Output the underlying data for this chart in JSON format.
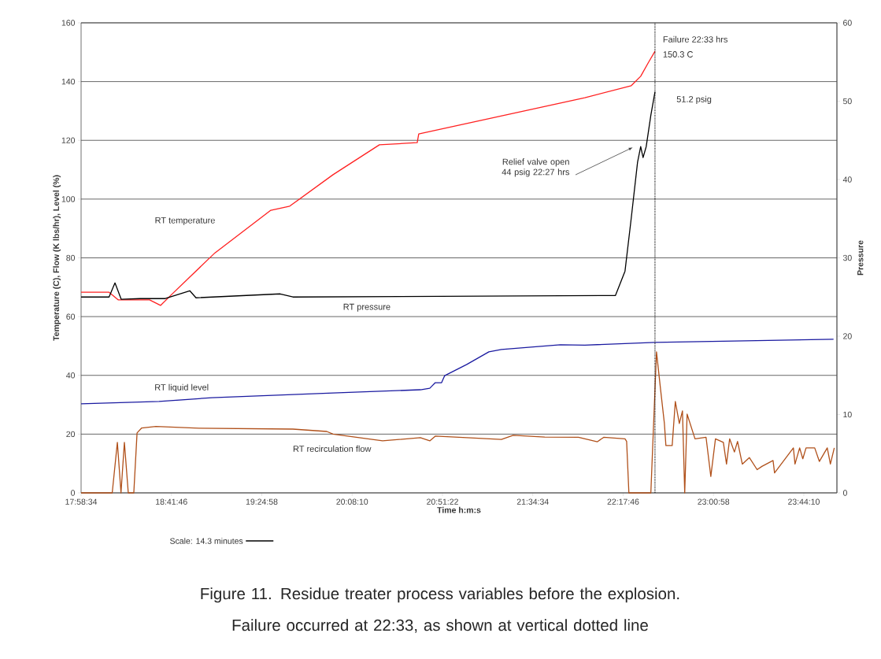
{
  "chart_data": {
    "type": "line",
    "xlabel": "Time  h:m:s",
    "ylabel": "Temperature (C), Flow (K lbs/hr),  Level (%)",
    "y2label": "Pressure",
    "xlim": [
      17.976,
      24.0
    ],
    "ylim": [
      0,
      160
    ],
    "y2lim": [
      0,
      60
    ],
    "xticks": [
      {
        "value": 17.97611,
        "label": "17:58:34"
      },
      {
        "value": 18.69611,
        "label": "18:41:46"
      },
      {
        "value": 19.41611,
        "label": "19:24:58"
      },
      {
        "value": 20.13611,
        "label": "20:08:10"
      },
      {
        "value": 20.85611,
        "label": "20:51:22"
      },
      {
        "value": 21.57611,
        "label": "21:34:34"
      },
      {
        "value": 22.29611,
        "label": "22:17:46"
      },
      {
        "value": 23.01611,
        "label": "23:00:58"
      },
      {
        "value": 23.73611,
        "label": "23:44:10"
      }
    ],
    "yticks": [
      0,
      20,
      40,
      60,
      80,
      100,
      120,
      140,
      160
    ],
    "y2ticks": [
      0,
      10,
      20,
      30,
      40,
      50,
      60
    ],
    "grid": "y",
    "marker": "none",
    "line_style": "solid",
    "series": [
      {
        "name": "RT temperature",
        "color": "#ff2020",
        "x": [
          17.976,
          18.199,
          18.271,
          18.522,
          18.609,
          18.697,
          19.043,
          19.488,
          19.639,
          19.984,
          20.354,
          20.655,
          20.667,
          21.991,
          22.361,
          22.436,
          22.499,
          22.55
        ],
        "values": [
          68.3,
          68.3,
          65.7,
          65.7,
          63.8,
          67.5,
          81.7,
          96.2,
          97.6,
          108.3,
          118.5,
          119.2,
          122.2,
          134.5,
          138.6,
          141.8,
          146.6,
          150.3
        ]
      },
      {
        "name": "RT pressure",
        "color": "#000000",
        "axis": "y2",
        "x": [
          17.976,
          18.199,
          18.246,
          18.296,
          18.447,
          18.647,
          18.842,
          18.892,
          19.563,
          19.664,
          22.235,
          22.311,
          22.361,
          22.411,
          22.436,
          22.455,
          22.48,
          22.517,
          22.55
        ],
        "values": [
          25.0,
          25.0,
          26.8,
          24.7,
          24.8,
          24.8,
          25.8,
          24.9,
          25.4,
          25.0,
          25.2,
          28.3,
          35.1,
          42.2,
          44.2,
          42.8,
          44.2,
          48.2,
          51.2
        ]
      },
      {
        "name": "RT liquid level",
        "color": "#1a1aa0",
        "x": [
          17.976,
          18.597,
          19.018,
          19.984,
          20.68,
          20.755,
          20.799,
          20.849,
          20.874,
          21.05,
          21.226,
          21.326,
          21.796,
          21.991,
          22.55,
          23.183,
          23.973
        ],
        "values": [
          30.3,
          31.1,
          32.4,
          34.0,
          35.1,
          35.6,
          37.5,
          37.5,
          39.9,
          43.7,
          48.0,
          48.8,
          50.4,
          50.3,
          51.2,
          51.7,
          52.3
        ]
      },
      {
        "name": "RT recirculation flow",
        "color": "#b0501a",
        "x": [
          17.976,
          18.224,
          18.265,
          18.294,
          18.321,
          18.352,
          18.396,
          18.422,
          18.459,
          18.572,
          18.917,
          19.664,
          19.934,
          19.984,
          20.379,
          20.68,
          20.755,
          20.799,
          21.05,
          21.326,
          21.42,
          21.671,
          21.94,
          22.091,
          22.141,
          22.311,
          22.324,
          22.342,
          22.517,
          22.562,
          22.594,
          22.625,
          22.637,
          22.687,
          22.712,
          22.744,
          22.769,
          22.787,
          22.806,
          22.869,
          22.957,
          22.995,
          23.032,
          23.095,
          23.12,
          23.145,
          23.183,
          23.208,
          23.246,
          23.302,
          23.364,
          23.402,
          23.491,
          23.503,
          23.653,
          23.666,
          23.703,
          23.728,
          23.754,
          23.823,
          23.86,
          23.923,
          23.948,
          23.979
        ],
        "values": [
          0,
          0,
          17.2,
          0,
          17.2,
          0,
          0,
          20.4,
          22.1,
          22.6,
          22.0,
          21.7,
          20.9,
          20.0,
          17.7,
          18.8,
          17.7,
          19.3,
          18.8,
          18.2,
          19.6,
          19.0,
          18.9,
          17.4,
          18.9,
          18.4,
          17.5,
          0,
          0,
          48.0,
          35.4,
          23.6,
          16.1,
          16.1,
          31.1,
          23.6,
          27.9,
          0,
          26.8,
          18.4,
          18.9,
          5.6,
          18.4,
          17.2,
          9.8,
          18.4,
          13.9,
          17.5,
          9.8,
          12.0,
          7.9,
          9.0,
          11.0,
          6.8,
          15.3,
          9.8,
          15.3,
          11.6,
          15.3,
          15.3,
          10.7,
          15.3,
          9.8,
          15.3
        ]
      }
    ],
    "ref_lines": [
      {
        "axis": "x",
        "value": 22.55,
        "color": "#000000",
        "line_style": "dotted"
      }
    ],
    "annotations": [
      "Relief valve open 44 psig 22:27 hrs",
      "Failure 22:33 hrs",
      "150.3 C",
      "51.2 psig",
      "Scale:  14.3 minutes",
      "Figure 11. Residue treater process variables before the explosion. Failure occurred at 22:33, as shown at vertical dotted line"
    ]
  }
}
